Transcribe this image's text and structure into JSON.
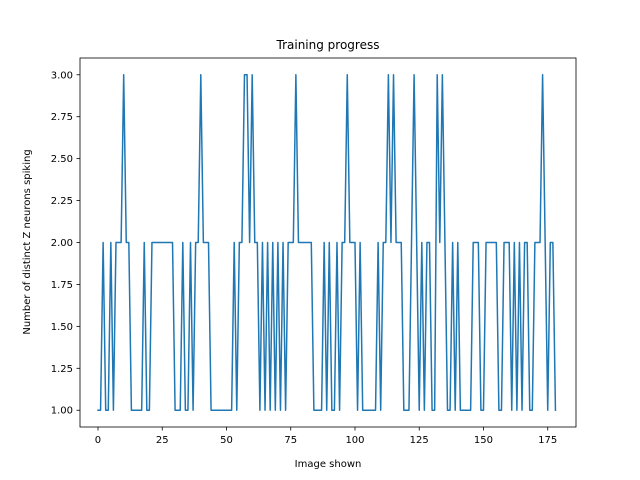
{
  "chart_data": {
    "type": "line",
    "title": "Training progress",
    "xlabel": "Image shown",
    "ylabel": "Number of distinct Z neurons spiking",
    "xlim": [
      -7,
      186
    ],
    "ylim": [
      0.9,
      3.1
    ],
    "xticks": [
      0,
      25,
      50,
      75,
      100,
      125,
      150,
      175
    ],
    "xtick_labels": [
      "0",
      "25",
      "50",
      "75",
      "100",
      "125",
      "150",
      "175"
    ],
    "yticks": [
      1.0,
      1.25,
      1.5,
      1.75,
      2.0,
      2.25,
      2.5,
      2.75,
      3.0
    ],
    "ytick_labels": [
      "1.00",
      "1.25",
      "1.50",
      "1.75",
      "2.00",
      "2.25",
      "2.50",
      "2.75",
      "3.00"
    ],
    "grid": false,
    "series": [
      {
        "color": "#1f77b4",
        "x": [
          0,
          1,
          2,
          3,
          4,
          5,
          6,
          7,
          8,
          9,
          10,
          11,
          12,
          13,
          14,
          15,
          16,
          17,
          18,
          19,
          20,
          21,
          22,
          23,
          24,
          25,
          26,
          27,
          28,
          29,
          30,
          31,
          32,
          33,
          34,
          35,
          36,
          37,
          38,
          39,
          40,
          41,
          42,
          43,
          44,
          45,
          46,
          47,
          48,
          49,
          50,
          51,
          52,
          53,
          54,
          55,
          56,
          57,
          58,
          59,
          60,
          61,
          62,
          63,
          64,
          65,
          66,
          67,
          68,
          69,
          70,
          71,
          72,
          73,
          74,
          75,
          76,
          77,
          78,
          79,
          80,
          81,
          82,
          83,
          84,
          85,
          86,
          87,
          88,
          89,
          90,
          91,
          92,
          93,
          94,
          95,
          96,
          97,
          98,
          99,
          100,
          101,
          102,
          103,
          104,
          105,
          106,
          107,
          108,
          109,
          110,
          111,
          112,
          113,
          114,
          115,
          116,
          117,
          118,
          119,
          120,
          121,
          122,
          123,
          124,
          125,
          126,
          127,
          128,
          129,
          130,
          131,
          132,
          133,
          134,
          135,
          136,
          137,
          138,
          139,
          140,
          141,
          142,
          143,
          144,
          145,
          146,
          147,
          148,
          149,
          150,
          151,
          152,
          153,
          154,
          155,
          156,
          157,
          158,
          159,
          160,
          161,
          162,
          163,
          164,
          165,
          166,
          167,
          168,
          169,
          170,
          171,
          172,
          173,
          174,
          175,
          176,
          177,
          178
        ],
        "y": [
          1,
          1,
          2,
          1,
          1,
          2,
          1,
          2,
          2,
          2,
          3,
          2,
          2,
          1,
          1,
          1,
          1,
          1,
          2,
          1,
          1,
          2,
          2,
          2,
          2,
          2,
          2,
          2,
          2,
          2,
          1,
          1,
          1,
          2,
          1,
          1,
          2,
          1,
          2,
          2,
          3,
          2,
          2,
          2,
          1,
          1,
          1,
          1,
          1,
          1,
          1,
          1,
          1,
          2,
          1,
          2,
          2,
          3,
          3,
          2,
          3,
          2,
          2,
          1,
          2,
          1,
          2,
          1,
          2,
          1,
          2,
          1,
          2,
          1,
          2,
          2,
          2,
          3,
          2,
          2,
          2,
          2,
          2,
          2,
          1,
          1,
          1,
          1,
          2,
          1,
          2,
          1,
          1,
          2,
          1,
          2,
          2,
          3,
          2,
          2,
          2,
          1,
          2,
          1,
          1,
          1,
          1,
          1,
          1,
          2,
          1,
          2,
          2,
          3,
          2,
          3,
          2,
          2,
          2,
          1,
          1,
          1,
          2,
          3,
          2,
          1,
          2,
          1,
          2,
          2,
          1,
          1,
          3,
          2,
          3,
          2,
          1,
          1,
          2,
          1,
          2,
          1,
          1,
          1,
          1,
          1,
          2,
          2,
          2,
          1,
          1,
          2,
          2,
          2,
          2,
          2,
          1,
          1,
          2,
          2,
          2,
          1,
          2,
          1,
          2,
          1,
          2,
          2,
          1,
          1,
          2,
          2,
          2,
          3,
          2,
          1,
          2,
          2,
          1
        ]
      }
    ]
  }
}
